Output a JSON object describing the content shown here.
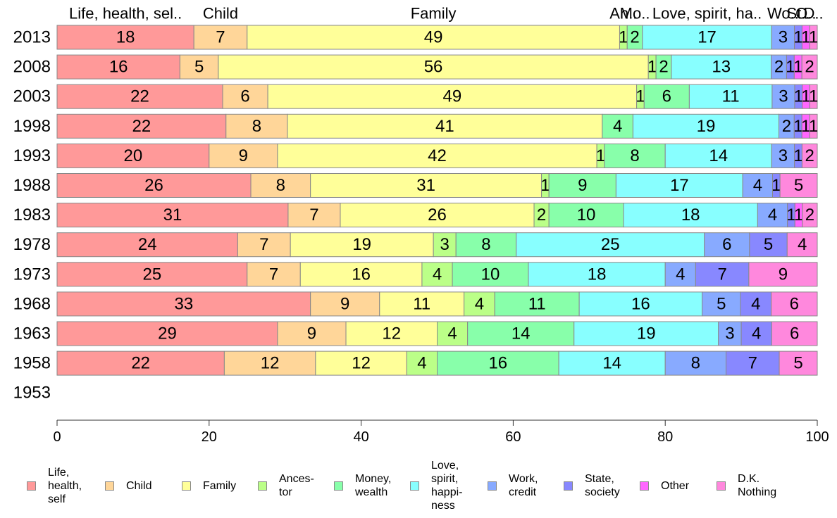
{
  "chart_data": {
    "type": "bar",
    "orientation": "horizontal",
    "stacked": true,
    "categories": [
      "2013",
      "2008",
      "2003",
      "1998",
      "1993",
      "1988",
      "1983",
      "1978",
      "1973",
      "1968",
      "1963",
      "1958",
      "1953"
    ],
    "series": [
      {
        "name": "Life,\nhealth,\nself",
        "top_label": "Life, health, sel..",
        "color": "#FF9999",
        "values": [
          18,
          16,
          22,
          22,
          20,
          26,
          31,
          24,
          25,
          33,
          29,
          22,
          null
        ]
      },
      {
        "name": "Child",
        "top_label": "Child",
        "color": "#FFD699",
        "values": [
          7,
          5,
          6,
          8,
          9,
          8,
          7,
          7,
          7,
          9,
          9,
          12,
          null
        ]
      },
      {
        "name": "Family",
        "top_label": "Family",
        "color": "#FFFF99",
        "values": [
          49,
          56,
          49,
          41,
          42,
          31,
          26,
          19,
          16,
          11,
          12,
          12,
          null
        ]
      },
      {
        "name": "Ances-\ntor",
        "top_label": "An..",
        "color": "#BBFF88",
        "values": [
          1,
          1,
          1,
          0,
          1,
          1,
          2,
          3,
          4,
          4,
          4,
          4,
          null
        ]
      },
      {
        "name": "Money,\nwealth",
        "top_label": "Mo..",
        "color": "#88FFAA",
        "values": [
          2,
          2,
          6,
          4,
          8,
          9,
          10,
          8,
          10,
          11,
          14,
          16,
          null
        ]
      },
      {
        "name": "Love,\nspirit,\nhappi-\nness",
        "top_label": "Love, spirit, ha..",
        "color": "#88FFFF",
        "values": [
          17,
          13,
          11,
          19,
          14,
          17,
          18,
          25,
          18,
          16,
          19,
          14,
          null
        ]
      },
      {
        "name": "Work,\ncredit",
        "top_label": "Wo..",
        "color": "#88AAFF",
        "values": [
          3,
          2,
          3,
          2,
          3,
          4,
          4,
          6,
          4,
          5,
          3,
          8,
          null
        ]
      },
      {
        "name": "State,\nsociety",
        "top_label": "St..",
        "color": "#8888FF",
        "values": [
          1,
          1,
          1,
          1,
          1,
          1,
          1,
          5,
          7,
          4,
          4,
          7,
          null
        ]
      },
      {
        "name": "Other",
        "top_label": "O..",
        "color": "#FF66FF",
        "values": [
          1,
          1,
          1,
          1,
          0,
          0,
          1,
          0,
          0,
          0,
          0,
          0,
          null
        ]
      },
      {
        "name": "D.K.\nNothing",
        "top_label": "D..",
        "color": "#FF88DD",
        "values": [
          1,
          2,
          1,
          1,
          2,
          5,
          2,
          4,
          9,
          6,
          6,
          5,
          null
        ]
      }
    ],
    "xlim": [
      0,
      100
    ],
    "xticks": [
      0,
      20,
      40,
      60,
      80,
      100
    ],
    "legend_position": "bottom"
  }
}
